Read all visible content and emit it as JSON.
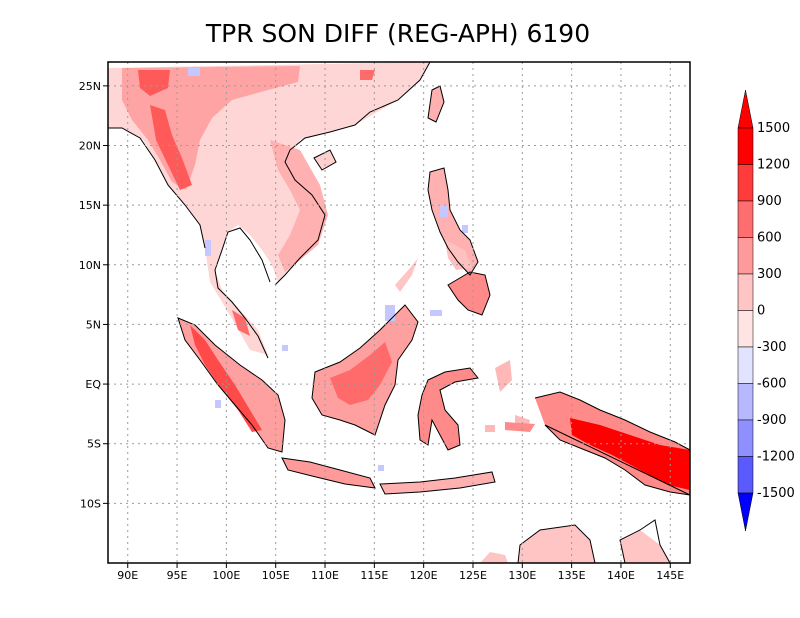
{
  "title": "TPR SON DIFF (REG-APH) 6190",
  "map": {
    "lon_range": [
      88,
      147
    ],
    "lat_range": [
      -15,
      27
    ],
    "x_ticks": [
      {
        "lon": 90,
        "label": "90E"
      },
      {
        "lon": 95,
        "label": "95E"
      },
      {
        "lon": 100,
        "label": "100E"
      },
      {
        "lon": 105,
        "label": "105E"
      },
      {
        "lon": 110,
        "label": "110E"
      },
      {
        "lon": 115,
        "label": "115E"
      },
      {
        "lon": 120,
        "label": "120E"
      },
      {
        "lon": 125,
        "label": "125E"
      },
      {
        "lon": 130,
        "label": "130E"
      },
      {
        "lon": 135,
        "label": "135E"
      },
      {
        "lon": 140,
        "label": "140E"
      },
      {
        "lon": 145,
        "label": "145E"
      }
    ],
    "y_ticks": [
      {
        "lat": 25,
        "label": "25N"
      },
      {
        "lat": 20,
        "label": "20N"
      },
      {
        "lat": 15,
        "label": "15N"
      },
      {
        "lat": 10,
        "label": "10N"
      },
      {
        "lat": 5,
        "label": "5N"
      },
      {
        "lat": 0,
        "label": "EQ"
      },
      {
        "lat": -5,
        "label": "5S"
      },
      {
        "lat": -10,
        "label": "10S"
      }
    ],
    "grid": true,
    "colorbar": {
      "position": "right",
      "levels": [
        {
          "label": "1500",
          "color": "#ff0000"
        },
        {
          "label": "1200",
          "color": "#ff3b3b"
        },
        {
          "label": "900",
          "color": "#ff6e6e"
        },
        {
          "label": "600",
          "color": "#ff9a9a"
        },
        {
          "label": "300",
          "color": "#ffc4c4"
        },
        {
          "label": "0",
          "color": "#ffe4e4"
        },
        {
          "label": "-300",
          "color": "#e2e4ff"
        },
        {
          "label": "-600",
          "color": "#b8b8ff"
        },
        {
          "label": "-900",
          "color": "#8f8fff"
        },
        {
          "label": "-1200",
          "color": "#5a5aff"
        },
        {
          "label": "-1500",
          "color": "#2a2aff"
        }
      ],
      "tip_top_color": "#ff0000",
      "tip_bottom_color": "#0000ff"
    }
  }
}
